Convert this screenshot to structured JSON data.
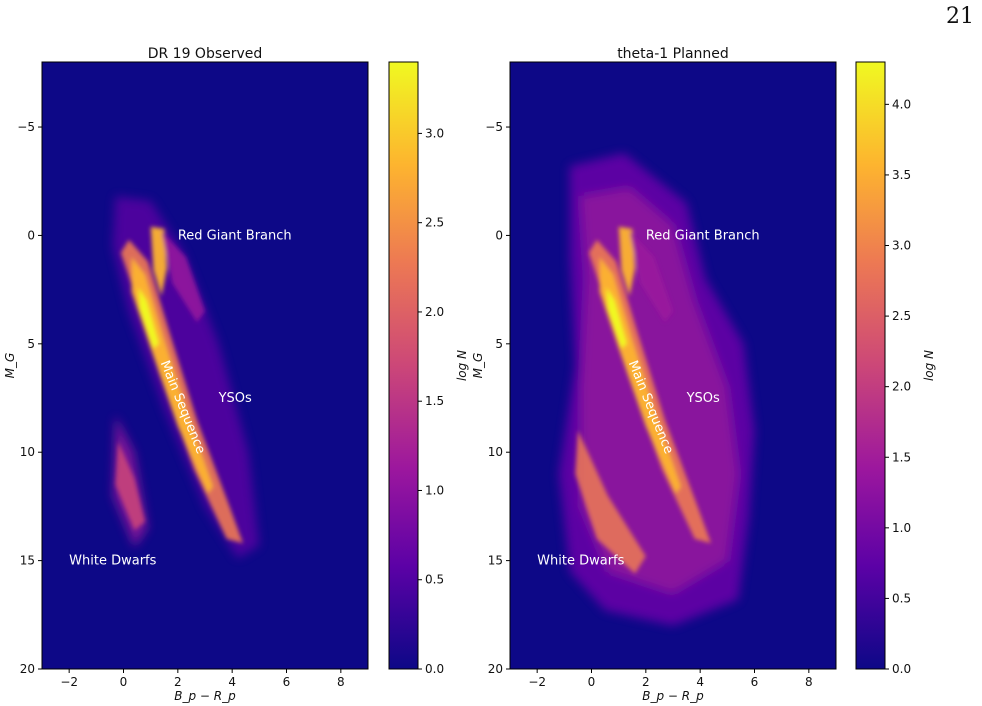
{
  "page_number": "21",
  "colors": {
    "background": "#0d0887",
    "cmap": [
      "#0d0887",
      "#5c01a6",
      "#9c179e",
      "#cc4778",
      "#ed7953",
      "#fdb42f",
      "#f0f921"
    ]
  },
  "chart_data": [
    {
      "type": "heatmap",
      "title": "DR 19 Observed",
      "xlabel": "B_p − R_p",
      "ylabel": "M_G",
      "xlim": [
        -3,
        9
      ],
      "ylim": [
        20,
        -8
      ],
      "xticks": [
        -2,
        0,
        2,
        4,
        6,
        8
      ],
      "yticks": [
        -5,
        0,
        5,
        10,
        15,
        20
      ],
      "colorbar": {
        "label": "log N",
        "range": [
          0,
          3.4
        ],
        "ticks": [
          "0.0",
          "0.5",
          "1.0",
          "1.5",
          "2.0",
          "2.5",
          "3.0"
        ]
      },
      "annotations": [
        {
          "text": "Red Giant Branch",
          "x": 2.0,
          "y": 0.0
        },
        {
          "text": "Main Sequence",
          "x": 1.5,
          "y": 5.8,
          "rotation": 68
        },
        {
          "text": "YSOs",
          "x": 3.5,
          "y": 7.5
        },
        {
          "text": "White Dwarfs",
          "x": -2.0,
          "y": 15.0
        }
      ]
    },
    {
      "type": "heatmap",
      "title": "theta-1 Planned",
      "xlabel": "B_p − R_p",
      "ylabel": "M_G",
      "xlim": [
        -3,
        9
      ],
      "ylim": [
        20,
        -8
      ],
      "xticks": [
        -2,
        0,
        2,
        4,
        6,
        8
      ],
      "yticks": [
        -5,
        0,
        5,
        10,
        15,
        20
      ],
      "colorbar": {
        "label": "log N",
        "range": [
          0,
          4.3
        ],
        "ticks": [
          "0.0",
          "0.5",
          "1.0",
          "1.5",
          "2.0",
          "2.5",
          "3.0",
          "3.5",
          "4.0"
        ]
      },
      "annotations": [
        {
          "text": "Red Giant Branch",
          "x": 2.0,
          "y": 0.0
        },
        {
          "text": "Main Sequence",
          "x": 1.5,
          "y": 5.8,
          "rotation": 68
        },
        {
          "text": "YSOs",
          "x": 3.5,
          "y": 7.5
        },
        {
          "text": "White Dwarfs",
          "x": -2.0,
          "y": 15.0
        }
      ]
    }
  ]
}
